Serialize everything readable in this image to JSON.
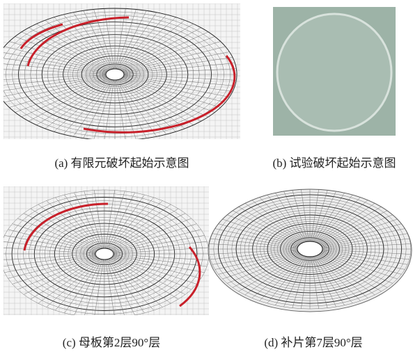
{
  "panels": [
    {
      "caption": "(a) 有限元破坏起始示意图"
    },
    {
      "caption": "(b) 试验破坏起始示意图"
    },
    {
      "caption": "(c) 母板第2层90°层"
    },
    {
      "caption": "(d) 补片第7层90°层"
    }
  ]
}
